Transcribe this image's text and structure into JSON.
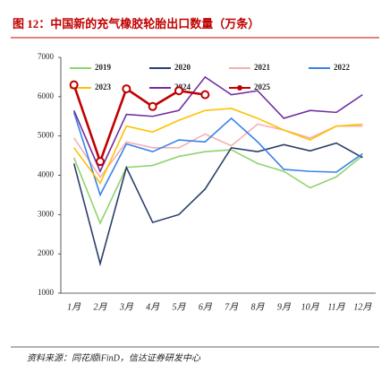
{
  "chart_data": {
    "type": "line",
    "title": "图 12：中国新的充气橡胶轮胎出口数量（万条）",
    "source": "资料来源：同花顺iFinD，信达证券研发中心",
    "categories": [
      "1月",
      "2月",
      "3月",
      "4月",
      "5月",
      "6月",
      "7月",
      "8月",
      "9月",
      "10月",
      "11月",
      "12月"
    ],
    "series": [
      {
        "name": "2019",
        "color": "#92d36e",
        "values": [
          4450,
          2780,
          4200,
          4250,
          4480,
          4600,
          4650,
          4300,
          4100,
          3680,
          3960,
          4500
        ]
      },
      {
        "name": "2020",
        "color": "#2b3f6b",
        "values": [
          4300,
          1750,
          4200,
          2800,
          3000,
          3650,
          4700,
          4600,
          4780,
          4620,
          4820,
          4450
        ]
      },
      {
        "name": "2021",
        "color": "#f4b0b0",
        "values": [
          4950,
          3950,
          4850,
          4700,
          4700,
          5050,
          4750,
          5300,
          5150,
          4950,
          5250,
          5250
        ]
      },
      {
        "name": "2022",
        "color": "#3b82e8",
        "values": [
          5600,
          3500,
          4800,
          4600,
          4900,
          4850,
          5450,
          4850,
          4150,
          4100,
          4080,
          4550
        ]
      },
      {
        "name": "2023",
        "color": "#ffc000",
        "values": [
          4700,
          3800,
          5250,
          5100,
          5400,
          5650,
          5700,
          5450,
          5150,
          4900,
          5250,
          5300
        ]
      },
      {
        "name": "2024",
        "color": "#7030a0",
        "values": [
          5650,
          4100,
          5550,
          5500,
          5650,
          6500,
          6050,
          6150,
          5450,
          5650,
          5600,
          6050
        ]
      },
      {
        "name": "2025",
        "color": "#c00000",
        "markers": true,
        "values": [
          6300,
          4350,
          6200,
          5750,
          6150,
          6050,
          null,
          null,
          null,
          null,
          null,
          null
        ]
      }
    ],
    "ylim": [
      1000,
      7000
    ],
    "yticks": [
      1000,
      2000,
      3000,
      4000,
      5000,
      6000,
      7000
    ]
  }
}
